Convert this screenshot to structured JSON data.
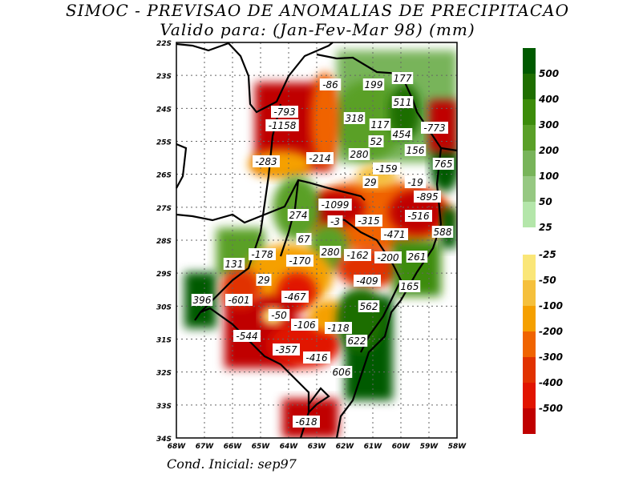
{
  "title": "SIMOC - PREVISAO DE ANOMALIAS DE PRECIPITACAO",
  "subtitle": "Valido para: (Jan-Fev-Mar 98) (mm)",
  "footer": "Cond. Inicial: sep97",
  "axes": {
    "y_ticks": [
      "22S",
      "23S",
      "24S",
      "25S",
      "26S",
      "27S",
      "28S",
      "29S",
      "30S",
      "31S",
      "32S",
      "33S",
      "34S"
    ],
    "x_ticks": [
      "68W",
      "67W",
      "66W",
      "65W",
      "64W",
      "63W",
      "62W",
      "61W",
      "60W",
      "59W",
      "58W"
    ]
  },
  "legend": {
    "positive": [
      {
        "label": "500",
        "color": "#005a00"
      },
      {
        "label": "400",
        "color": "#1e6e00"
      },
      {
        "label": "300",
        "color": "#3c8c0a"
      },
      {
        "label": "200",
        "color": "#5aa028"
      },
      {
        "label": "100",
        "color": "#78b45a"
      },
      {
        "label": "50",
        "color": "#96c882"
      },
      {
        "label": "25",
        "color": "#b4e6aa"
      }
    ],
    "negative": [
      {
        "label": "-25",
        "color": "#fae678"
      },
      {
        "label": "-50",
        "color": "#f5c03c"
      },
      {
        "label": "-100",
        "color": "#f5a000"
      },
      {
        "label": "-200",
        "color": "#f06400"
      },
      {
        "label": "-300",
        "color": "#e13200"
      },
      {
        "label": "-400",
        "color": "#e11400"
      },
      {
        "label": "-500",
        "color": "#c00000"
      }
    ]
  },
  "contour_labels": [
    "-86",
    "199",
    "177",
    "511",
    "-793",
    "-1158",
    "318",
    "117",
    "454",
    "-773",
    "52",
    "280",
    "156",
    "765",
    "-283",
    "-214",
    "-159",
    "29",
    "-19",
    "-895",
    "-1099",
    "274",
    "-3",
    "-315",
    "-516",
    "588",
    "-471",
    "67",
    "280",
    "-162",
    "-200",
    "261",
    "-178",
    "-170",
    "131",
    "29",
    "-409",
    "165",
    "396",
    "-601",
    "-467",
    "562",
    "-50",
    "-106",
    "-118",
    "622",
    "-544",
    "-357",
    "-416",
    "606",
    "-618"
  ]
}
